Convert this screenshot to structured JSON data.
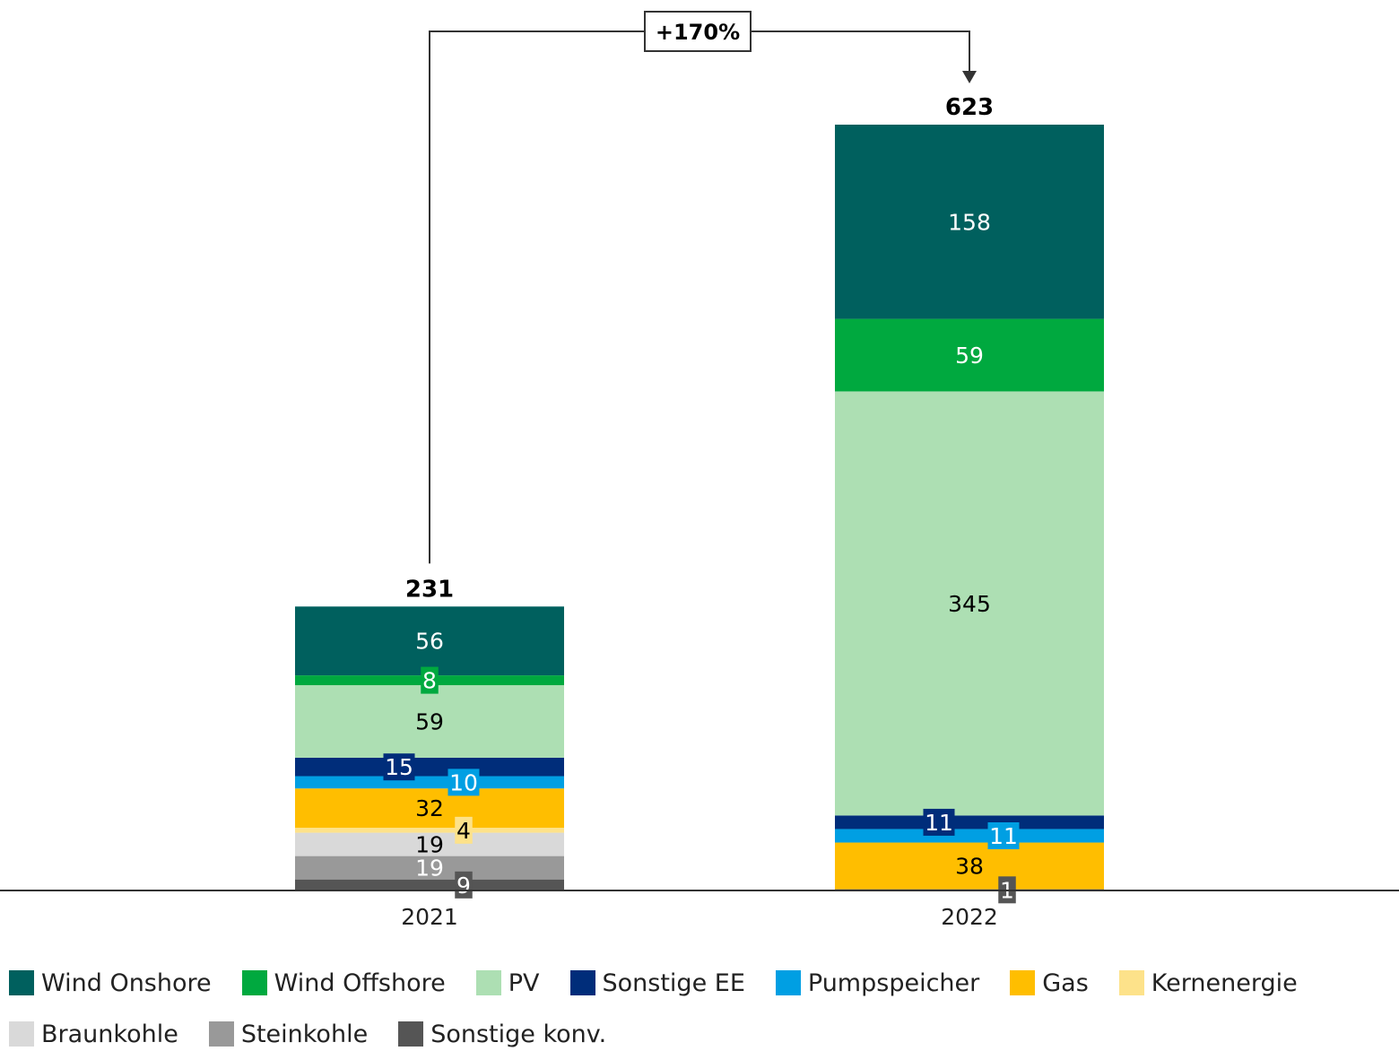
{
  "chart_data": {
    "type": "bar",
    "stacked": true,
    "categories": [
      "2021",
      "2022"
    ],
    "totals": [
      "231",
      "623"
    ],
    "growth_label": "+170%",
    "series": [
      {
        "name": "Sonstige konv.",
        "color": "#555555",
        "text_color": "#ffffff",
        "boxed": true,
        "values": [
          9,
          1
        ]
      },
      {
        "name": "Steinkohle",
        "color": "#999999",
        "text_color": "#ffffff",
        "boxed": false,
        "values": [
          19,
          0
        ]
      },
      {
        "name": "Braunkohle",
        "color": "#d9d9d9",
        "text_color": "#000000",
        "boxed": false,
        "values": [
          19,
          0
        ]
      },
      {
        "name": "Kernenergie",
        "color": "#fde28a",
        "text_color": "#000000",
        "boxed": true,
        "values": [
          4,
          0
        ]
      },
      {
        "name": "Gas",
        "color": "#ffbe00",
        "text_color": "#000000",
        "boxed": false,
        "values": [
          32,
          38
        ]
      },
      {
        "name": "Pumpspeicher",
        "color": "#009fe3",
        "text_color": "#ffffff",
        "boxed": true,
        "values": [
          10,
          11
        ]
      },
      {
        "name": "Sonstige EE",
        "color": "#002d7a",
        "text_color": "#ffffff",
        "boxed": true,
        "values": [
          15,
          11
        ]
      },
      {
        "name": "PV",
        "color": "#addfb3",
        "text_color": "#000000",
        "boxed": false,
        "values": [
          59,
          345
        ]
      },
      {
        "name": "Wind Offshore",
        "color": "#00a93f",
        "text_color": "#ffffff",
        "boxed": true,
        "values": [
          8,
          59
        ]
      },
      {
        "name": "Wind Onshore",
        "color": "#00605e",
        "text_color": "#ffffff",
        "boxed": false,
        "values": [
          56,
          158
        ]
      }
    ],
    "legend_order": [
      "Wind Onshore",
      "Wind Offshore",
      "PV",
      "Sonstige EE",
      "Pumpspeicher",
      "Gas",
      "Kernenergie",
      "Braunkohle",
      "Steinkohle",
      "Sonstige konv."
    ],
    "ylim": [
      0,
      623
    ],
    "legend_position": "bottom",
    "grid": false
  }
}
